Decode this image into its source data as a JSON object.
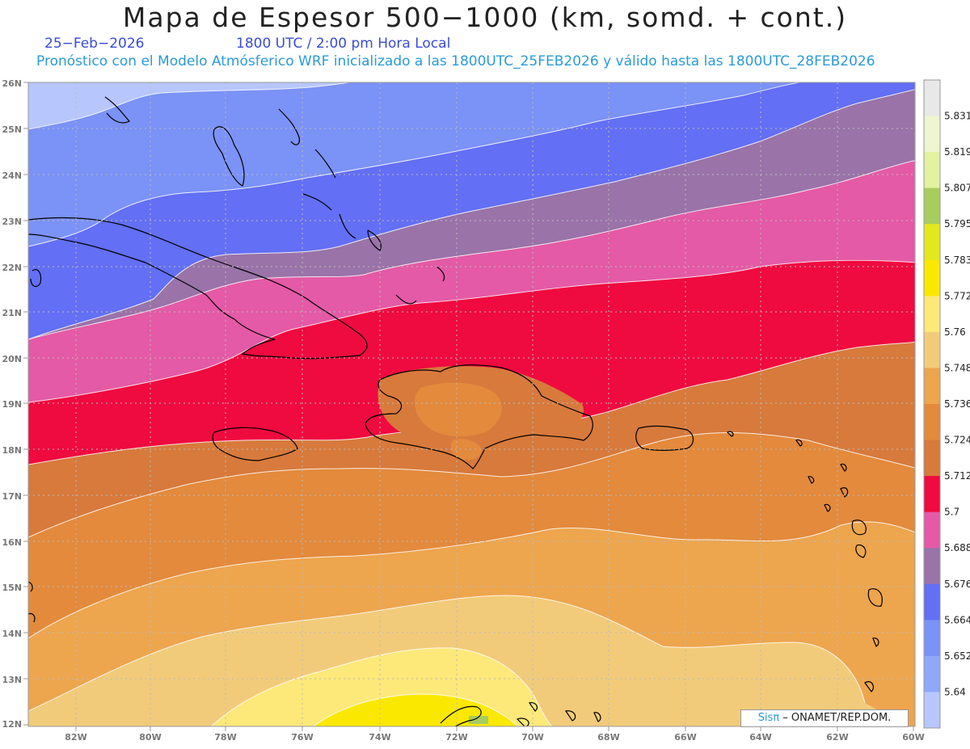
{
  "header": {
    "title": "Mapa de Espesor 500−1000 (km, somd. + cont.)",
    "date": "25−Feb−2026",
    "time": "1800 UTC / 2:00 pm Hora Local",
    "description": "Pronóstico con el Modelo Atmósferico WRF inicializado a las 1800UTC_25FEB2026 y válido hasta las  1800UTC_28FEB2026"
  },
  "map": {
    "lat_labels": [
      "26N",
      "25N",
      "24N",
      "23N",
      "22N",
      "21N",
      "20N",
      "19N",
      "18N",
      "17N",
      "16N",
      "15N",
      "14N",
      "13N",
      "12N"
    ],
    "lon_labels": [
      "82W",
      "80W",
      "78W",
      "76W",
      "74W",
      "72W",
      "70W",
      "68W",
      "66W",
      "64W",
      "62W",
      "60W"
    ]
  },
  "colorbar": {
    "labels": [
      "5.831",
      "5.819",
      "5.807",
      "5.795",
      "5.783",
      "5.772",
      "5.76",
      "5.748",
      "5.736",
      "5.724",
      "5.712",
      "5.7",
      "5.688",
      "5.676",
      "5.664",
      "5.652",
      "5.64"
    ],
    "colors": [
      "#e8e8e8",
      "#eff5d0",
      "#e2f2a0",
      "#a9cc5e",
      "#e2e81e",
      "#fbe800",
      "#fde87a",
      "#f2cb7a",
      "#eda54e",
      "#e38a3c",
      "#d77a3c",
      "#ef0a3f",
      "#e45aa6",
      "#9a73a8",
      "#636ff4",
      "#7b92f6",
      "#8fa8fb",
      "#b7c6fc"
    ]
  },
  "credit": {
    "brand": "Sisπ",
    "org": " – ONAMET/REP.DOM."
  }
}
